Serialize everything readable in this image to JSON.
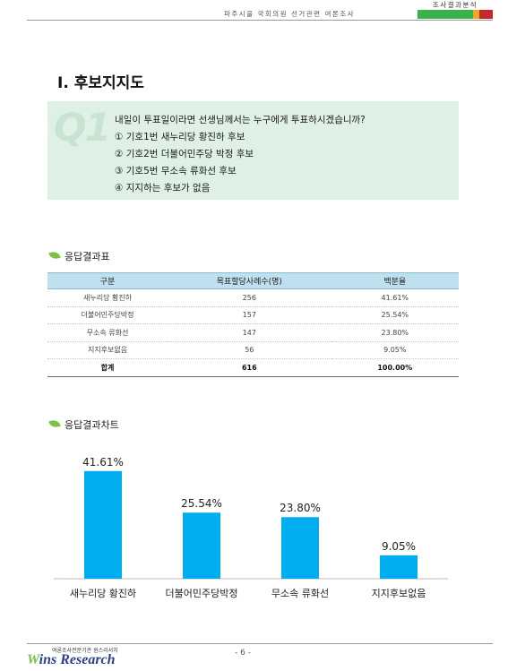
{
  "header": {
    "text": "파주시을 국회의원 선거관련 여론조사",
    "tab_label": "조사결과분석"
  },
  "section": {
    "title": "Ⅰ. 후보지지도"
  },
  "question": {
    "number": "Q1",
    "text": "내일이 투표일이라면 선생님께서는 누구에게 투표하시겠습니까?",
    "options": [
      "① 기호1번 새누리당 황진하 후보",
      "② 기호2번 더불어민주당 박정 후보",
      "③ 기호5번 무소속 류화선 후보",
      "④ 지지하는 후보가 없음"
    ]
  },
  "results_table": {
    "heading": "응답결과표",
    "columns": [
      "구분",
      "목표할당사례수(명)",
      "백분율"
    ],
    "rows": [
      [
        "새누리당 황진하",
        "256",
        "41.61%"
      ],
      [
        "더불어민주당박정",
        "157",
        "25.54%"
      ],
      [
        "무소속 류화선",
        "147",
        "23.80%"
      ],
      [
        "지지후보없음",
        "56",
        "9.05%"
      ],
      [
        "합계",
        "616",
        "100.00%"
      ]
    ]
  },
  "chart_heading": "응답결과차트",
  "chart_data": {
    "type": "bar",
    "categories": [
      "새누리당 황진하",
      "더불어민주당박정",
      "무소속 류화선",
      "지지후보없음"
    ],
    "values": [
      41.61,
      25.54,
      23.8,
      9.05
    ],
    "labels": [
      "41.61%",
      "25.54%",
      "23.80%",
      "9.05%"
    ],
    "bar_color": "#00aeef",
    "title": "",
    "xlabel": "",
    "ylabel": ""
  },
  "footer": {
    "org_line": "여론조사전문기관 윈스리서치",
    "logo_a": "W",
    "logo_b": "ins Research",
    "page": "- 6 -"
  },
  "colors": {
    "accent_green": "#38b24a",
    "accent_orange": "#f2a81d",
    "accent_red": "#c8272e",
    "question_bg": "#dff0e7",
    "table_header_bg": "#bfe0ee"
  }
}
